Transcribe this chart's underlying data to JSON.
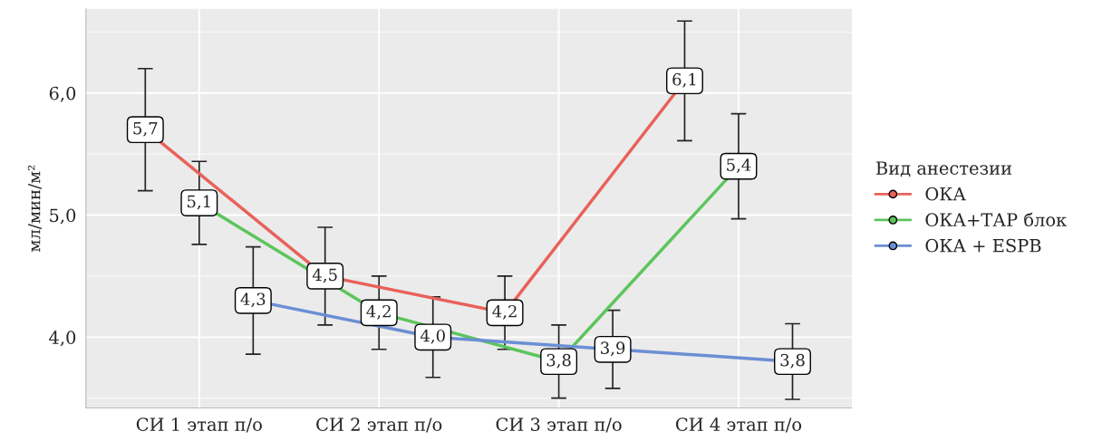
{
  "chart_data": {
    "type": "line",
    "ylabel": "мл/мин/м²",
    "legend_title": "Вид анестезии",
    "categories": [
      "СИ 1 этап п/о",
      "СИ 2 этап п/о",
      "СИ 3 этап п/о",
      "СИ 4 этап п/о"
    ],
    "series": [
      {
        "name": "ОКА",
        "color": "#e8625a",
        "values": [
          5.7,
          4.5,
          4.2,
          6.1
        ],
        "value_labels": [
          "5,7",
          "4,5",
          "4,2",
          "6,1"
        ],
        "errors": [
          0.5,
          0.4,
          0.3,
          0.49
        ]
      },
      {
        "name": "ОКА+ТАР блок",
        "color": "#5cc55c",
        "values": [
          5.1,
          4.2,
          3.8,
          5.4
        ],
        "value_labels": [
          "5,1",
          "4,2",
          "3,8",
          "5,4"
        ],
        "errors": [
          0.34,
          0.3,
          0.3,
          0.43
        ]
      },
      {
        "name": "ОКА + ESPB",
        "color": "#6b8fd4",
        "values": [
          4.3,
          4.0,
          3.9,
          3.8
        ],
        "value_labels": [
          "4,3",
          "4,0",
          "3,9",
          "3,8"
        ],
        "errors": [
          0.44,
          0.33,
          0.32,
          0.31
        ]
      }
    ],
    "ylim": [
      3.42,
      6.69
    ],
    "yticks": [
      {
        "value": 4.0,
        "label": "4,0"
      },
      {
        "value": 5.0,
        "label": "5,0"
      },
      {
        "value": 6.0,
        "label": "6,0"
      }
    ],
    "grid": true,
    "legend": "right",
    "marker": "circle",
    "line_style": "solid"
  }
}
